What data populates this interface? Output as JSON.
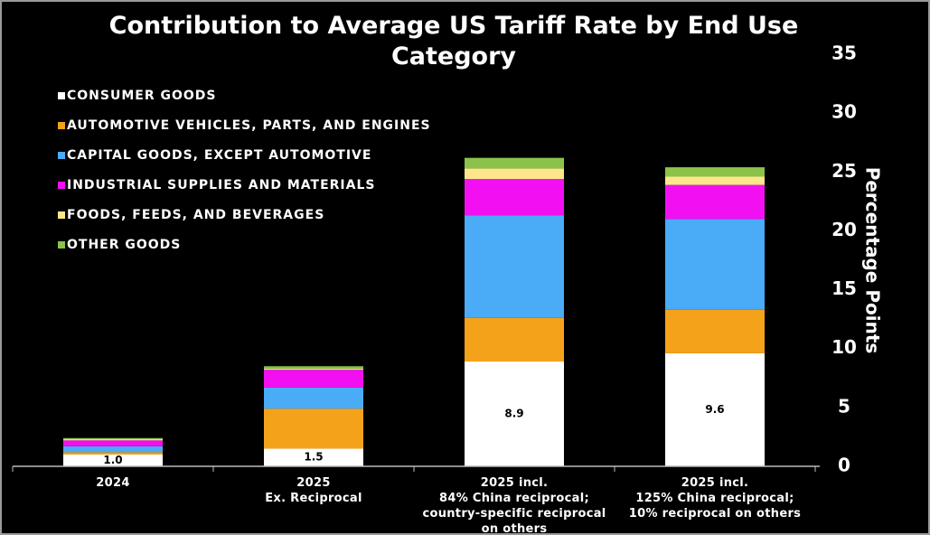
{
  "chart_data": {
    "type": "stacked_bar",
    "title": "Contribution to Average US Tariff Rate by End Use Category",
    "y_label": "Percentage Points",
    "categories": [
      "2024",
      "2025\nEx. Reciprocal",
      "2025 incl.\n84% China reciprocal;\ncountry-specific reciprocal\non others",
      "2025 incl.\n125% China reciprocal;\n10% reciprocal on others"
    ],
    "series": [
      {
        "name": "CONSUMER GOODS",
        "color": "#ffffff",
        "values": [
          1.0,
          1.5,
          8.9,
          9.6
        ],
        "value_labels": [
          "1.0",
          "1.5",
          "8.9",
          "9.6"
        ]
      },
      {
        "name": "AUTOMOTIVE VEHICLES, PARTS, AND ENGINES",
        "color": "#f5a21b",
        "values": [
          0.2,
          3.4,
          3.7,
          3.7
        ]
      },
      {
        "name": "CAPITAL GOODS, EXCEPT AUTOMOTIVE",
        "color": "#4aabf7",
        "values": [
          0.5,
          1.8,
          8.7,
          7.7
        ]
      },
      {
        "name": "INDUSTRIAL SUPPLIES AND MATERIALS",
        "color": "#f20ff2",
        "values": [
          0.5,
          1.5,
          3.1,
          2.9
        ]
      },
      {
        "name": "FOODS, FEEDS, AND BEVERAGES",
        "color": "#fde68a",
        "values": [
          0.1,
          0.1,
          0.9,
          0.7
        ]
      },
      {
        "name": "OTHER GOODS",
        "color": "#8bc34a",
        "values": [
          0.1,
          0.2,
          0.9,
          0.8
        ]
      }
    ],
    "ylim": [
      0,
      35
    ],
    "yticks": [
      0,
      5,
      10,
      15,
      20,
      25,
      30,
      35
    ],
    "grid": false,
    "legend": "top-left"
  }
}
